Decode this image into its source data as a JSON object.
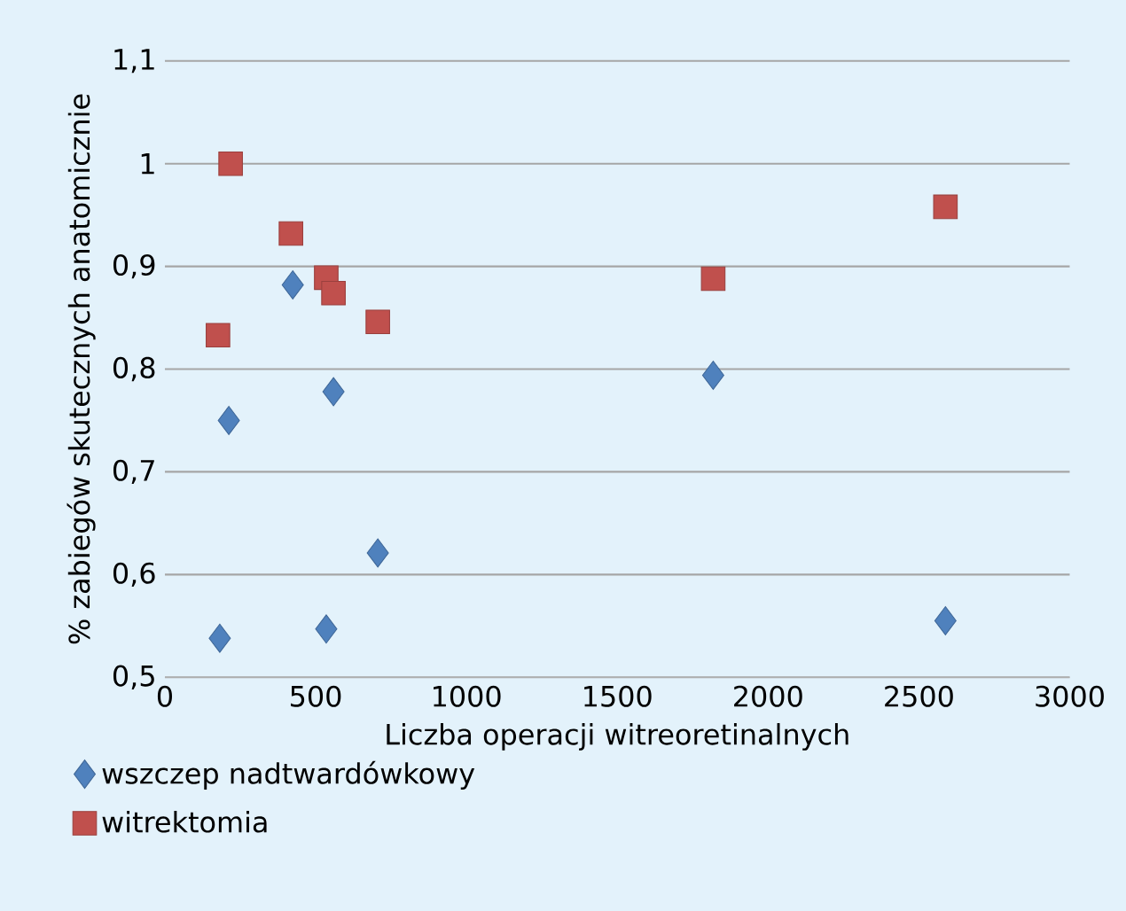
{
  "chart_data": {
    "type": "scatter",
    "xlabel": "Liczba operacji witreoretinalnych",
    "ylabel": "% zabiegów skutecznych anatomicznie",
    "xlim": [
      0,
      3000
    ],
    "xticks": [
      0,
      500,
      1000,
      1500,
      2000,
      2500,
      3000
    ],
    "ylim": [
      0.5,
      1.1
    ],
    "yticks": [
      {
        "value": 0.5,
        "label": "0,5"
      },
      {
        "value": 0.6,
        "label": "0,6"
      },
      {
        "value": 0.7,
        "label": "0,7"
      },
      {
        "value": 0.8,
        "label": "0,8"
      },
      {
        "value": 0.9,
        "label": "0,9"
      },
      {
        "value": 1,
        "label": "1"
      },
      {
        "value": 1.1,
        "label": "1,1"
      }
    ],
    "grid": "y",
    "legend": "bottom left",
    "series": [
      {
        "name": "wszczep nadtwardówkowy",
        "color": "#4f81bd",
        "marker": "diamond",
        "x": [
          424,
          212,
          559,
          706,
          182,
          535,
          1818,
          2588
        ],
        "values": [
          0.882,
          0.75,
          0.778,
          0.621,
          0.538,
          0.547,
          0.794,
          0.555
        ]
      },
      {
        "name": "witrektomia",
        "color": "#c0504d",
        "marker": "square",
        "x": [
          218,
          418,
          176,
          535,
          559,
          706,
          1818,
          2588
        ],
        "values": [
          1.0,
          0.932,
          0.833,
          0.889,
          0.874,
          0.846,
          0.888,
          0.958
        ]
      }
    ]
  }
}
